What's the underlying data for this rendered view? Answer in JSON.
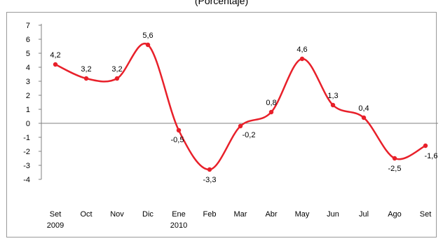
{
  "chart_data": {
    "type": "line",
    "title": "",
    "subtitle": "(Porcentaje)",
    "categories": [
      "Set",
      "Oct",
      "Nov",
      "Dic",
      "Ene",
      "Feb",
      "Mar",
      "Abr",
      "May",
      "Jun",
      "Jul",
      "Ago",
      "Set"
    ],
    "year_labels": [
      "2009",
      "",
      "",
      "",
      "2010",
      "",
      "",
      "",
      "",
      "",
      "",
      "",
      ""
    ],
    "series": [
      {
        "values": [
          4.2,
          3.2,
          3.2,
          5.6,
          -0.5,
          -3.3,
          -0.2,
          0.8,
          4.6,
          1.3,
          0.4,
          -2.5,
          -1.6
        ],
        "labels": [
          "4,2",
          "3,2",
          "3,2",
          "5,6",
          "-0,5",
          "-3,3",
          "-0,2",
          "0,8",
          "4,6",
          "1,3",
          "0,4",
          "-2,5",
          "-1,6"
        ],
        "color": "#e8202a"
      }
    ],
    "yticks": [
      7,
      6,
      5,
      4,
      3,
      2,
      1,
      0,
      -1,
      -2,
      -3,
      -4
    ],
    "ylim": [
      -4,
      7
    ],
    "xlabel": "",
    "ylabel": "",
    "grid": false,
    "legend": "none",
    "axis_color": "#808080"
  }
}
